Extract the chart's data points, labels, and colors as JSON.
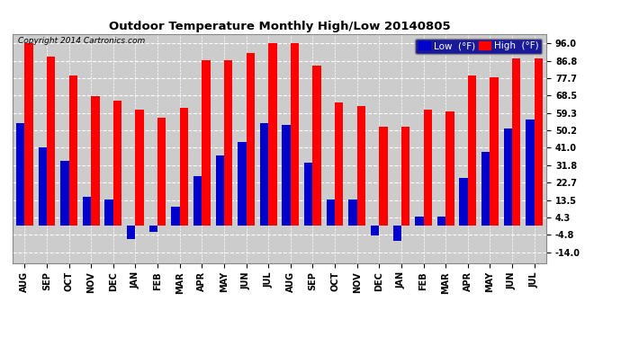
{
  "title": "Outdoor Temperature Monthly High/Low 20140805",
  "copyright": "Copyright 2014 Cartronics.com",
  "months": [
    "AUG",
    "SEP",
    "OCT",
    "NOV",
    "DEC",
    "JAN",
    "FEB",
    "MAR",
    "APR",
    "MAY",
    "JUN",
    "JUL",
    "AUG",
    "SEP",
    "OCT",
    "NOV",
    "DEC",
    "JAN",
    "FEB",
    "MAR",
    "APR",
    "MAY",
    "JUN",
    "JUL"
  ],
  "high": [
    96.0,
    89.0,
    79.0,
    68.0,
    66.0,
    61.0,
    57.0,
    62.0,
    87.0,
    87.0,
    91.0,
    96.0,
    96.0,
    84.0,
    65.0,
    63.0,
    52.0,
    52.0,
    61.0,
    60.0,
    79.0,
    78.0,
    88.0,
    88.0
  ],
  "low": [
    54.0,
    41.0,
    34.0,
    15.0,
    14.0,
    -7.0,
    -3.0,
    10.0,
    26.0,
    37.0,
    44.0,
    54.0,
    53.0,
    33.0,
    14.0,
    14.0,
    -5.0,
    -8.0,
    5.0,
    5.0,
    25.0,
    39.0,
    51.0,
    56.0
  ],
  "high_color": "#ff0000",
  "low_color": "#0000cc",
  "bg_color": "#ffffff",
  "plot_bg_color": "#cccccc",
  "grid_color": "#ffffff",
  "ytick_labels": [
    "96.0",
    "86.8",
    "77.7",
    "68.5",
    "59.3",
    "50.2",
    "41.0",
    "31.8",
    "22.7",
    "13.5",
    "4.3",
    "-4.8",
    "-14.0"
  ],
  "ytick_vals": [
    96.0,
    86.8,
    77.7,
    68.5,
    59.3,
    50.2,
    41.0,
    31.8,
    22.7,
    13.5,
    4.3,
    -4.8,
    -14.0
  ],
  "ylim": [
    -19.5,
    101.0
  ],
  "legend_low_label": "Low  (°F)",
  "legend_high_label": "High  (°F)",
  "bar_width": 0.38
}
